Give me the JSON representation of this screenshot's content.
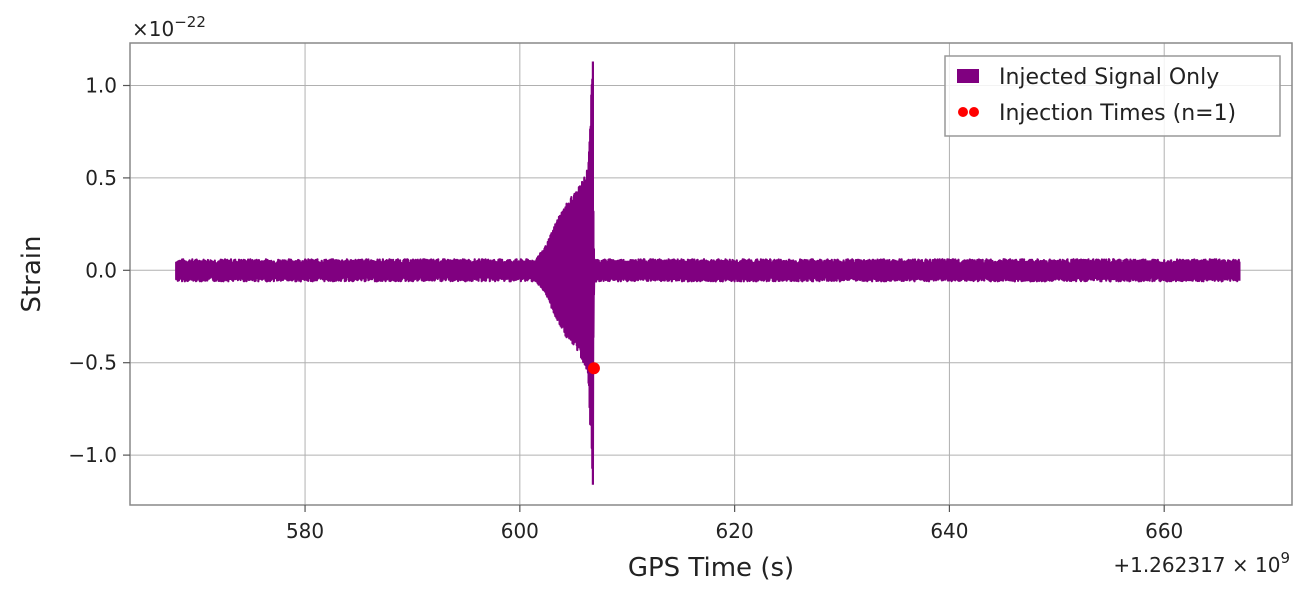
{
  "chart_data": {
    "type": "line",
    "xlabel": "GPS Time (s)",
    "ylabel": "Strain",
    "x_offset_text": "+1.262317 × 10",
    "x_offset_exp": "9",
    "y_multiplier_text": "×10",
    "y_multiplier_exp": "−22",
    "xlim": [
      563.7,
      671.9
    ],
    "ylim": [
      -1.27,
      1.23
    ],
    "xticks": [
      580,
      600,
      620,
      640,
      660
    ],
    "xtick_labels": [
      "580",
      "600",
      "620",
      "640",
      "660"
    ],
    "yticks": [
      1.0,
      0.5,
      0.0,
      -0.5,
      -1.0
    ],
    "ytick_labels": [
      "1.0",
      "0.5",
      "0.0",
      "−0.5",
      "−1.0"
    ],
    "grid": true,
    "legend_position": "top-right",
    "series": [
      {
        "name": "Injected Signal Only",
        "color": "#800080",
        "x_start": 568,
        "x_end": 667,
        "baseline_amplitude": 0.06,
        "chirp_start": 601.5,
        "merger_time": 606.8,
        "chirp_envelope": [
          {
            "x": 601.5,
            "amp": 0.06
          },
          {
            "x": 602.5,
            "amp": 0.14
          },
          {
            "x": 603.5,
            "amp": 0.28
          },
          {
            "x": 604.5,
            "amp": 0.38
          },
          {
            "x": 605.5,
            "amp": 0.45
          },
          {
            "x": 606.3,
            "amp": 0.55
          },
          {
            "x": 606.8,
            "amp": 1.13
          }
        ]
      },
      {
        "name": "Injection Times (n=1)",
        "color": "#ff0000",
        "type": "scatter",
        "points": [
          {
            "x": 606.9,
            "y": -0.53
          }
        ]
      }
    ]
  }
}
